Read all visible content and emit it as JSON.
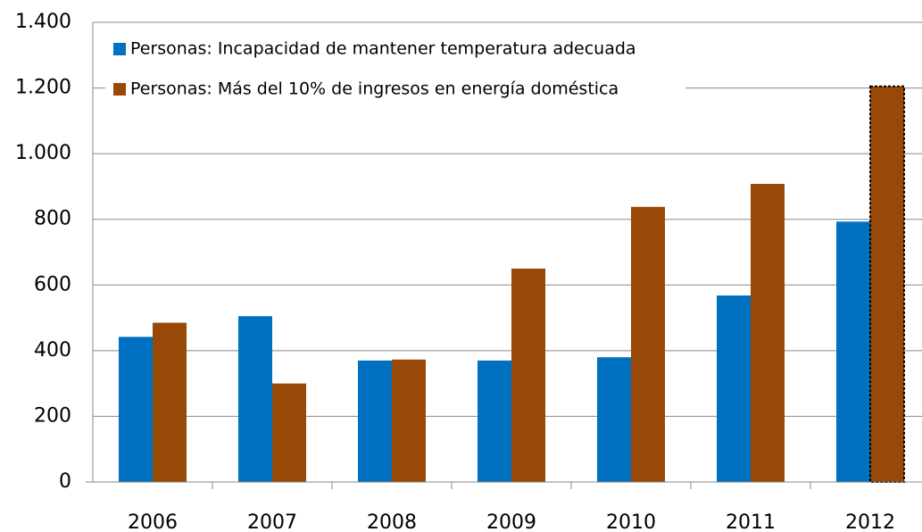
{
  "chart_data": {
    "type": "bar",
    "categories": [
      "2006",
      "2007",
      "2008",
      "2009",
      "2010",
      "2011",
      "2012"
    ],
    "series": [
      {
        "name": "Personas: Incapacidad de mantener temperatura adecuada",
        "color": "#0070c0",
        "values": [
          442,
          505,
          370,
          370,
          380,
          568,
          793
        ]
      },
      {
        "name": "Personas: Más del 10% de ingresos en energía doméstica",
        "color": "#984807",
        "values": [
          485,
          300,
          373,
          650,
          838,
          908,
          1205
        ]
      }
    ],
    "ylim": [
      0,
      1400
    ],
    "yticks": [
      0,
      200,
      400,
      600,
      800,
      {
        "value": 1000,
        "label": "1.000"
      },
      {
        "value": 1200,
        "label": "1.200"
      },
      {
        "value": 1400,
        "label": "1.400"
      }
    ],
    "grid": true,
    "legend": "top-left"
  }
}
